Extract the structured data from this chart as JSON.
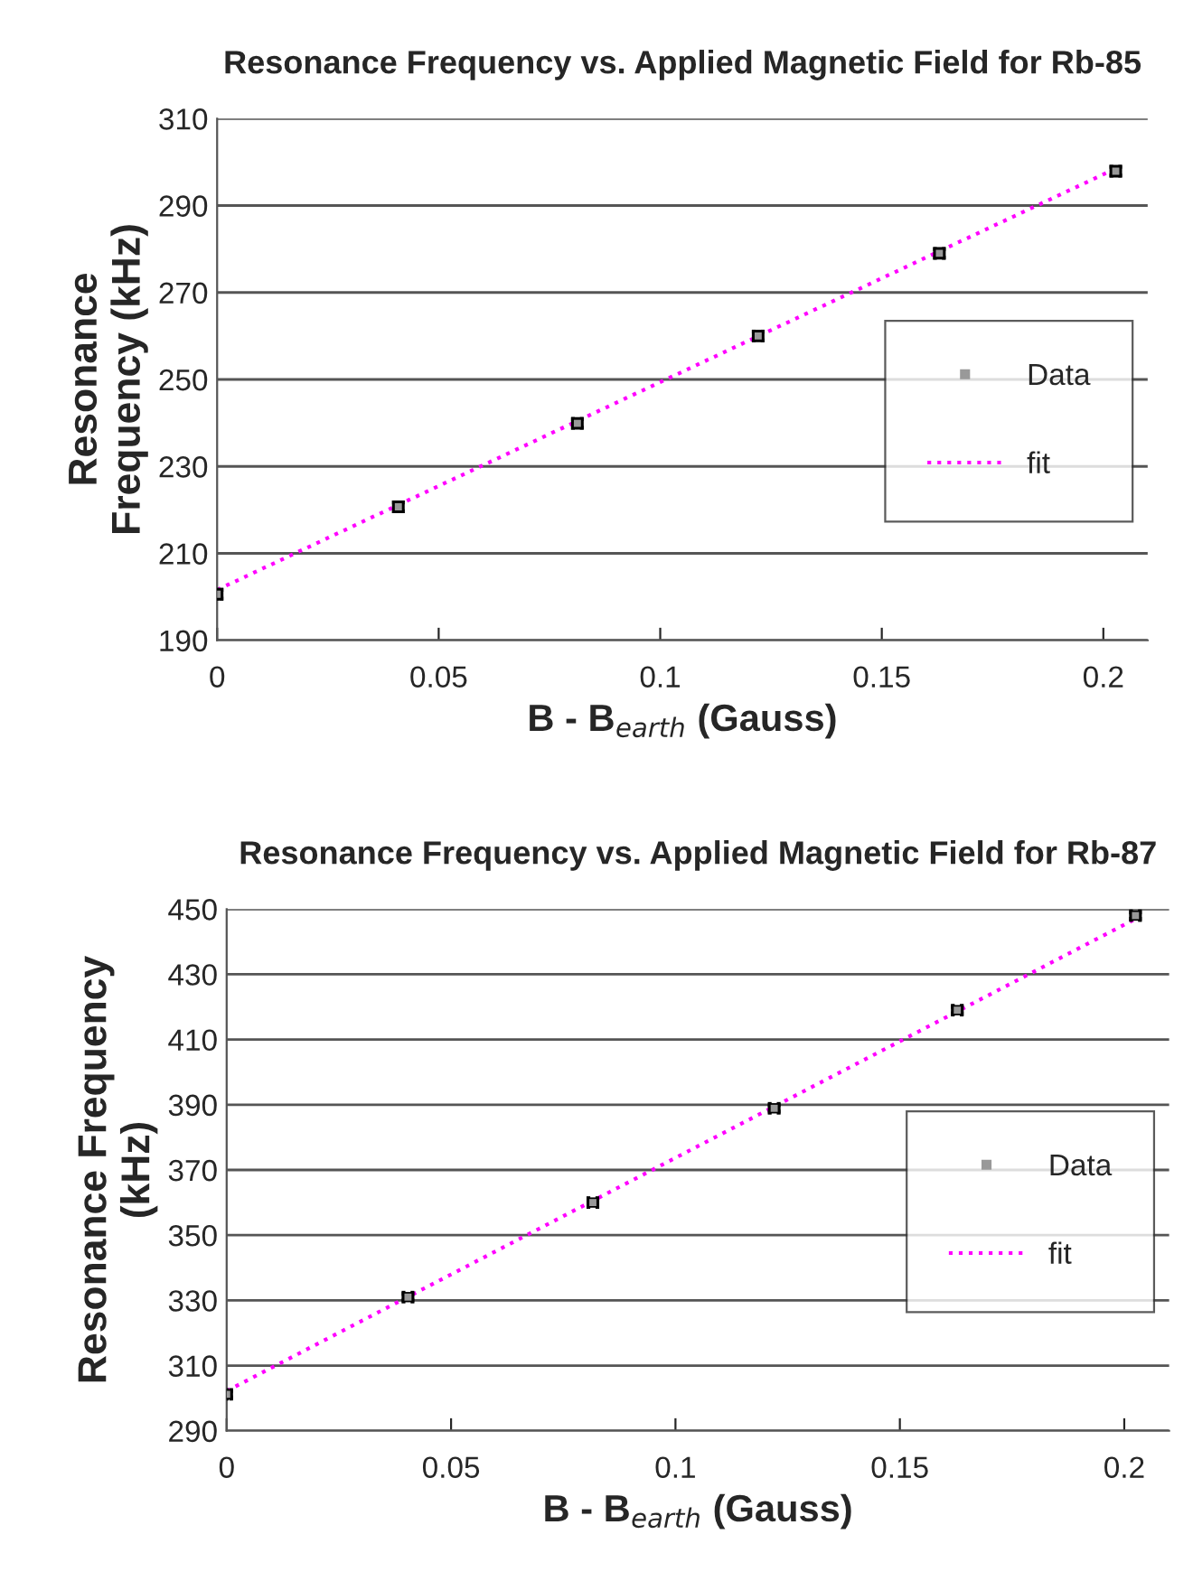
{
  "chart_data": [
    {
      "type": "scatter",
      "title": "Resonance Frequency vs. Applied Magnetic Field for Rb-85",
      "xlabel": "B - B$_{earth}$ (Gauss)",
      "ylabel": "Resonance\nFrequency (kHz)",
      "xlim": [
        0,
        0.21
      ],
      "xticks": [
        0,
        0.05,
        0.1,
        0.15,
        0.2
      ],
      "ylim": [
        190,
        310
      ],
      "yticks": [
        190,
        210,
        230,
        250,
        270,
        290,
        310
      ],
      "grid": "y",
      "legend": "right",
      "series": [
        {
          "name": "Data",
          "color": "#999999",
          "marker": "square",
          "x": [
            0,
            0.0409,
            0.0813,
            0.1221,
            0.163,
            0.2028
          ],
          "values": [
            200.6,
            220.7,
            239.9,
            260,
            279,
            297.9
          ],
          "errors": [
            1,
            1,
            1,
            1,
            1,
            1
          ],
          "xerrors": [
            [
              0,
              0.001
            ],
            0.001,
            0.001,
            0.001,
            0.001,
            0.001
          ]
        },
        {
          "name": "fit",
          "type": "line",
          "color": "#ff00ff",
          "line_style": "dotted",
          "x": [
            0,
            0.2028
          ],
          "values": [
            201.6,
            298.5
          ]
        }
      ]
    },
    {
      "type": "scatter",
      "title": "Resonance Frequency vs. Applied Magnetic Field for Rb-87",
      "xlabel": "B - B$_{earth}$ (Gauss)",
      "ylabel": "Resonance Frequency\n(kHz)",
      "xlim": [
        0,
        0.21
      ],
      "xticks": [
        0,
        0.05,
        0.1,
        0.15,
        0.2
      ],
      "ylim": [
        290,
        450
      ],
      "yticks": [
        290,
        310,
        330,
        350,
        370,
        390,
        410,
        430,
        450
      ],
      "grid": "y",
      "legend": "right",
      "series": [
        {
          "name": "Data",
          "color": "#999999",
          "marker": "square",
          "x": [
            0,
            0.0404,
            0.0816,
            0.122,
            0.1628,
            0.2025
          ],
          "values": [
            301.2,
            331,
            360,
            388.9,
            419,
            448
          ],
          "errors": [
            1,
            1,
            1,
            1,
            1,
            1
          ],
          "xerrors": [
            [
              0,
              0.001
            ],
            0.001,
            0.001,
            0.001,
            0.001,
            0.001
          ]
        },
        {
          "name": "fit",
          "type": "line",
          "color": "#ff00ff",
          "line_style": "dotted",
          "x": [
            0,
            0.2025
          ],
          "values": [
            302.2,
            447
          ]
        }
      ]
    }
  ]
}
